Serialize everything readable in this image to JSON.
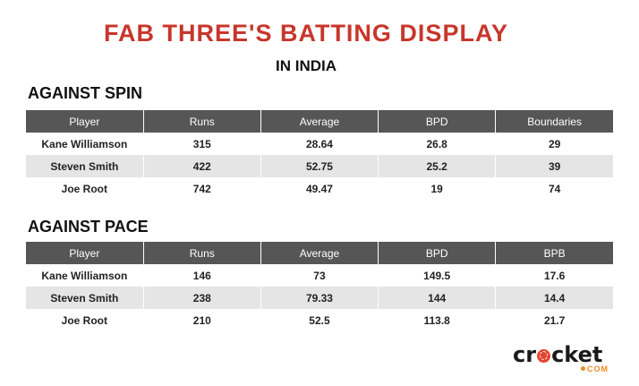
{
  "title": "FAB THREE'S BATTING DISPLAY",
  "subtitle": "IN INDIA",
  "spin": {
    "heading": "AGAINST SPIN",
    "columns": [
      "Player",
      "Runs",
      "Average",
      "BPD",
      "Boundaries"
    ],
    "rows": [
      [
        "Kane Williamson",
        "315",
        "28.64",
        "26.8",
        "29"
      ],
      [
        "Steven Smith",
        "422",
        "52.75",
        "25.2",
        "39"
      ],
      [
        "Joe Root",
        "742",
        "49.47",
        "19",
        "74"
      ]
    ]
  },
  "pace": {
    "heading": "AGAINST PACE",
    "columns": [
      "Player",
      "Runs",
      "Average",
      "BPD",
      "BPB"
    ],
    "rows": [
      [
        "Kane Williamson",
        "146",
        "73",
        "149.5",
        "17.6"
      ],
      [
        "Steven Smith",
        "238",
        "79.33",
        "144",
        "14.4"
      ],
      [
        "Joe Root",
        "210",
        "52.5",
        "113.8",
        "21.7"
      ]
    ]
  },
  "logo": {
    "word_start": "cr",
    "word_end": "cket",
    "suffix": "COM",
    "ball_color": "#e3452f",
    "accent_color": "#f08a24"
  }
}
